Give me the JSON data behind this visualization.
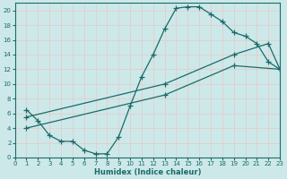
{
  "xlabel": "Humidex (Indice chaleur)",
  "background_color": "#cde8e8",
  "grid_color": "#e8c8c8",
  "line_color": "#1a6b6b",
  "xlim": [
    0,
    23
  ],
  "ylim": [
    0,
    21
  ],
  "xticks": [
    0,
    1,
    2,
    3,
    4,
    5,
    6,
    7,
    8,
    9,
    10,
    11,
    12,
    13,
    14,
    15,
    16,
    17,
    18,
    19,
    20,
    21,
    22,
    23
  ],
  "yticks": [
    0,
    2,
    4,
    6,
    8,
    10,
    12,
    14,
    16,
    18,
    20
  ],
  "curve1_x": [
    1,
    2,
    3,
    4,
    5,
    6,
    7,
    8,
    9,
    10,
    11,
    12,
    13,
    14,
    15,
    16,
    17,
    18,
    19,
    20,
    21,
    22,
    23
  ],
  "curve1_y": [
    6.5,
    5.0,
    3.0,
    2.2,
    2.2,
    1.0,
    0.5,
    0.5,
    2.8,
    7.0,
    11.0,
    14.0,
    17.5,
    20.3,
    20.5,
    20.5,
    19.5,
    18.5,
    17.0,
    16.5,
    15.5,
    13.0,
    12.0
  ],
  "curve2_x": [
    1,
    13,
    19,
    22,
    23
  ],
  "curve2_y": [
    5.5,
    10.0,
    14.0,
    15.5,
    12.0
  ],
  "curve3_x": [
    1,
    13,
    19,
    23
  ],
  "curve3_y": [
    4.0,
    8.5,
    12.5,
    12.0
  ]
}
